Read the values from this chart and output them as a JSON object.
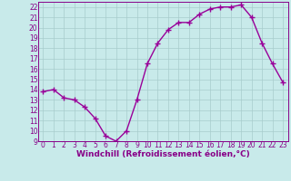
{
  "x": [
    0,
    1,
    2,
    3,
    4,
    5,
    6,
    7,
    8,
    9,
    10,
    11,
    12,
    13,
    14,
    15,
    16,
    17,
    18,
    19,
    20,
    21,
    22,
    23
  ],
  "y": [
    13.8,
    14.0,
    13.2,
    13.0,
    12.3,
    11.2,
    9.5,
    9.0,
    10.0,
    13.0,
    16.5,
    18.5,
    19.8,
    20.5,
    20.5,
    21.3,
    21.8,
    22.0,
    22.0,
    22.2,
    21.0,
    18.5,
    16.5,
    14.7
  ],
  "ylim": [
    9,
    22.5
  ],
  "yticks": [
    9,
    10,
    11,
    12,
    13,
    14,
    15,
    16,
    17,
    18,
    19,
    20,
    21,
    22
  ],
  "xticks": [
    0,
    1,
    2,
    3,
    4,
    5,
    6,
    7,
    8,
    9,
    10,
    11,
    12,
    13,
    14,
    15,
    16,
    17,
    18,
    19,
    20,
    21,
    22,
    23
  ],
  "xlabel": "Windchill (Refroidissement éolien,°C)",
  "line_color": "#990099",
  "marker": "+",
  "marker_size": 4.0,
  "line_width": 1.0,
  "bg_color": "#c8eaea",
  "grid_color": "#a8cccc",
  "tick_color": "#880088",
  "label_color": "#880088",
  "xlabel_fontsize": 6.5,
  "tick_fontsize": 5.5
}
